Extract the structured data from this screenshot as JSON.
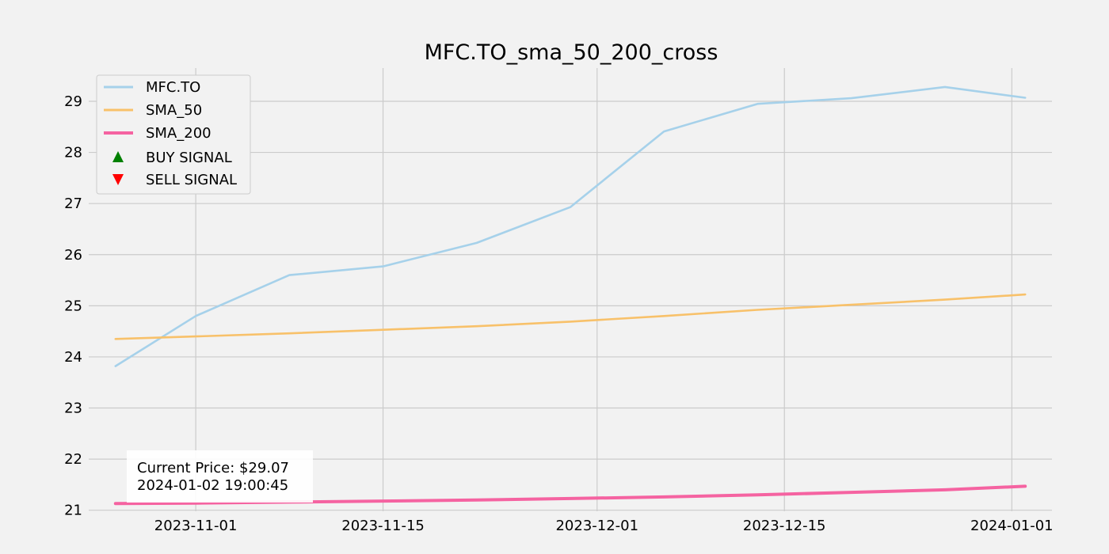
{
  "chart_data": {
    "type": "line",
    "title": "MFC.TO_sma_50_200_cross",
    "xlabel": "",
    "ylabel": "",
    "x_dates": [
      "2023-10-26",
      "2023-11-01",
      "2023-11-08",
      "2023-11-15",
      "2023-11-22",
      "2023-11-29",
      "2023-12-06",
      "2023-12-13",
      "2023-12-20",
      "2023-12-27",
      "2024-01-02"
    ],
    "xlim": [
      "2023-10-24",
      "2024-01-04"
    ],
    "ylim": [
      20.98,
      29.65
    ],
    "x_ticks": [
      "2023-11-01",
      "2023-11-15",
      "2023-12-01",
      "2023-12-15",
      "2024-01-01"
    ],
    "y_ticks": [
      "21",
      "22",
      "23",
      "24",
      "25",
      "26",
      "27",
      "28",
      "29"
    ],
    "grid": true,
    "legend_position": "top-left",
    "series": [
      {
        "name": "MFC.TO",
        "color": "#a6d1ea",
        "values": [
          23.82,
          24.8,
          25.6,
          25.77,
          26.23,
          26.93,
          28.41,
          28.95,
          29.06,
          29.28,
          29.07
        ]
      },
      {
        "name": "SMA_50",
        "color": "#f8c16a",
        "values": [
          24.35,
          24.4,
          24.46,
          24.53,
          24.6,
          24.69,
          24.8,
          24.92,
          25.02,
          25.12,
          25.22
        ]
      },
      {
        "name": "SMA_200",
        "color": "#f563a1",
        "values": [
          21.13,
          21.14,
          21.16,
          21.18,
          21.2,
          21.23,
          21.26,
          21.3,
          21.35,
          21.4,
          21.47
        ]
      }
    ],
    "signal_legend": [
      {
        "name": "BUY SIGNAL",
        "color": "#008000",
        "marker": "triangle-up"
      },
      {
        "name": "SELL SIGNAL",
        "color": "#ff0000",
        "marker": "triangle-down"
      }
    ],
    "annotation": {
      "line1": "Current Price: $29.07",
      "line2": "2024-01-02 19:00:45"
    }
  }
}
